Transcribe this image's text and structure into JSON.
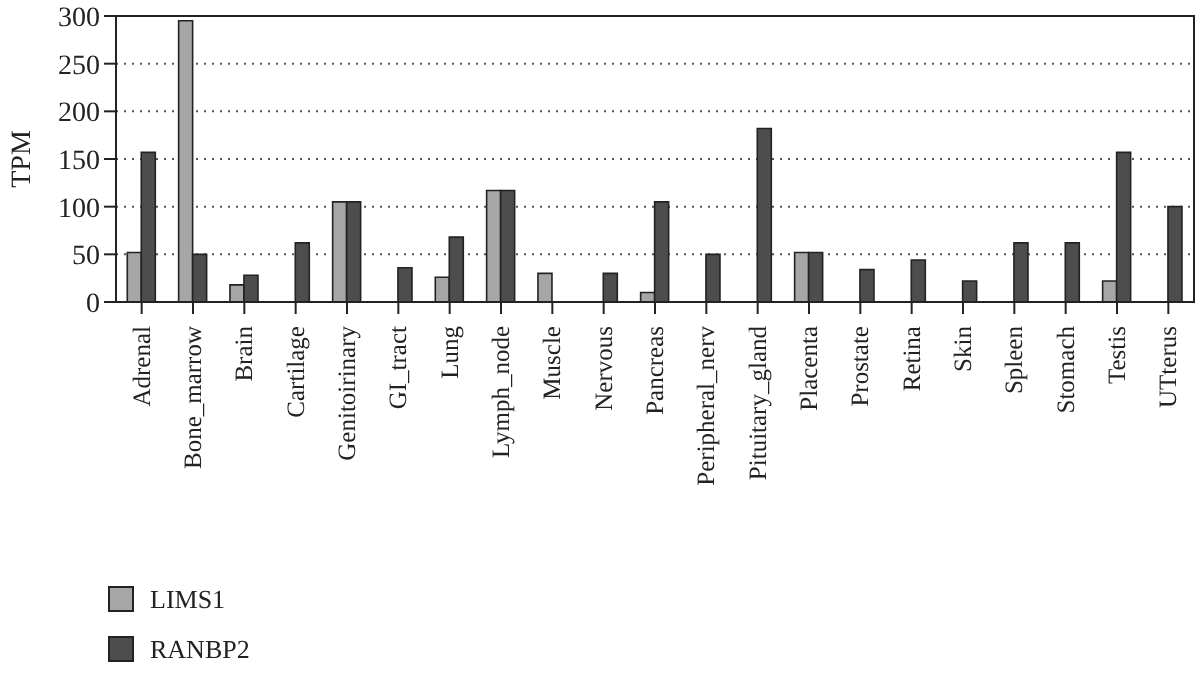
{
  "chart_data": {
    "type": "bar",
    "ylabel": "TPM",
    "categories": [
      "Adrenal",
      "Bone_marrow",
      "Brain",
      "Cartilage",
      "Genitoirinary",
      "GI_tract",
      "Lung",
      "Lymph_node",
      "Muscle",
      "Nervous",
      "Pancreas",
      "Peripheral_nerv",
      "Pituitary_gland",
      "Placenta",
      "Prostate",
      "Retina",
      "Skin",
      "Spleen",
      "Stomach",
      "Testis",
      "UTterus"
    ],
    "series": [
      {
        "name": "LIMS1",
        "color": "#a6a6a6",
        "values": [
          52,
          295,
          18,
          0,
          105,
          0,
          26,
          117,
          30,
          0,
          10,
          0,
          0,
          52,
          0,
          0,
          0,
          0,
          0,
          22,
          0
        ]
      },
      {
        "name": "RANBP2",
        "color": "#4d4d4d",
        "values": [
          157,
          50,
          28,
          62,
          105,
          36,
          68,
          117,
          0,
          30,
          105,
          50,
          182,
          52,
          34,
          44,
          22,
          62,
          62,
          157,
          100
        ]
      }
    ],
    "ylim": [
      0,
      300
    ],
    "yticks": [
      0,
      50,
      100,
      150,
      200,
      250,
      300
    ],
    "grid": "y",
    "legend": "bottom left"
  }
}
